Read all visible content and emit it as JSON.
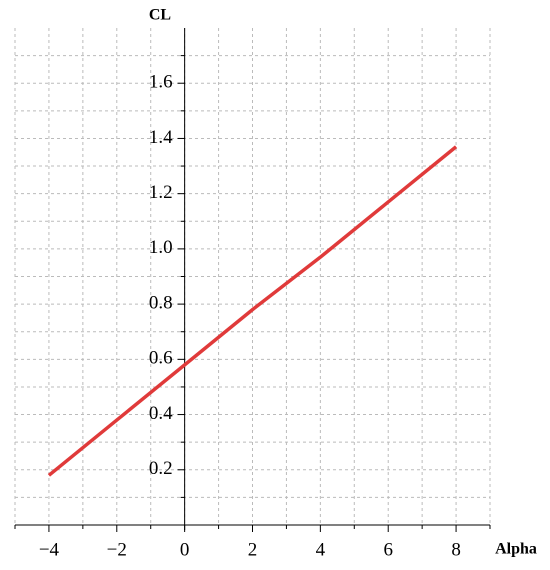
{
  "chart_data": {
    "type": "line",
    "xlabel": "Alpha",
    "ylabel": "CL",
    "x": [
      -4,
      -2,
      0,
      2,
      4,
      6,
      8
    ],
    "series": [
      {
        "color": "#e03a3a",
        "values": [
          0.18,
          0.38,
          0.58,
          0.78,
          0.97,
          1.17,
          1.37
        ]
      }
    ],
    "xlim": [
      -5,
      9
    ],
    "ylim": [
      0,
      1.8
    ],
    "xticks": [
      {
        "value": -4,
        "label": "−4"
      },
      {
        "value": -2,
        "label": "−2"
      },
      0,
      2,
      4,
      6,
      8
    ],
    "yticks": [
      0.2,
      0.4,
      0.6,
      0.8,
      {
        "value": 1.0,
        "label": "1.0"
      },
      1.2,
      1.4,
      1.6
    ],
    "xminor_ticks": [
      -5,
      -3,
      -1,
      1,
      3,
      5,
      7,
      9
    ],
    "yminor_ticks": [
      0.1,
      0.3,
      0.5,
      0.7,
      0.9,
      1.1,
      1.3,
      1.5,
      1.7
    ],
    "grid": true
  }
}
